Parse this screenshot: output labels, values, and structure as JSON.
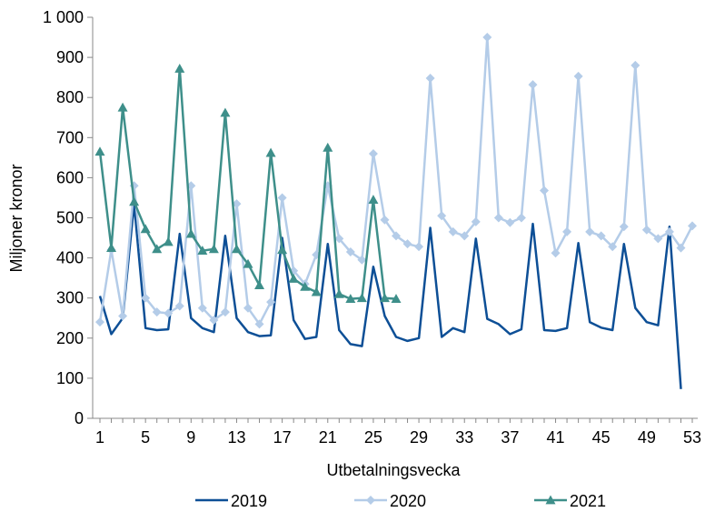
{
  "chart_data": {
    "type": "line",
    "title": "",
    "xlabel": "Utbetalningsvecka",
    "ylabel": "Miljoner kronor",
    "ylim": [
      0,
      1000
    ],
    "xlim": [
      1,
      53
    ],
    "y_ticks": [
      "0",
      "100",
      "200",
      "300",
      "400",
      "500",
      "600",
      "700",
      "800",
      "900",
      "1 000"
    ],
    "x_ticks": [
      "1",
      "5",
      "9",
      "13",
      "17",
      "21",
      "25",
      "29",
      "33",
      "37",
      "41",
      "45",
      "49",
      "53"
    ],
    "grid": false,
    "legend_position": "bottom",
    "series": [
      {
        "name": "2019",
        "color": "#0d4f96",
        "marker": "none",
        "x": [
          1,
          2,
          3,
          4,
          5,
          6,
          7,
          8,
          9,
          10,
          11,
          12,
          13,
          14,
          15,
          16,
          17,
          18,
          19,
          20,
          21,
          22,
          23,
          24,
          25,
          26,
          27,
          28,
          29,
          30,
          31,
          32,
          33,
          34,
          35,
          36,
          37,
          38,
          39,
          40,
          41,
          42,
          43,
          44,
          45,
          46,
          47,
          48,
          49,
          50,
          51,
          52
        ],
        "values": [
          305,
          210,
          250,
          535,
          225,
          220,
          222,
          460,
          250,
          225,
          215,
          455,
          250,
          215,
          205,
          207,
          450,
          245,
          198,
          203,
          435,
          220,
          185,
          180,
          378,
          255,
          203,
          193,
          200,
          475,
          203,
          225,
          215,
          448,
          248,
          235,
          210,
          222,
          485,
          220,
          218,
          225,
          437,
          240,
          226,
          220,
          435,
          275,
          240,
          232,
          478,
          73
        ]
      },
      {
        "name": "2020",
        "color": "#b4cce8",
        "marker": "diamond",
        "x": [
          1,
          2,
          3,
          4,
          5,
          6,
          7,
          8,
          9,
          10,
          11,
          12,
          13,
          14,
          15,
          16,
          17,
          18,
          19,
          20,
          21,
          22,
          23,
          24,
          25,
          26,
          27,
          28,
          29,
          30,
          31,
          32,
          33,
          34,
          35,
          36,
          37,
          38,
          39,
          40,
          41,
          42,
          43,
          44,
          45,
          46,
          47,
          48,
          49,
          50,
          51,
          52,
          53
        ],
        "values": [
          240,
          420,
          255,
          580,
          300,
          265,
          262,
          280,
          580,
          275,
          245,
          265,
          535,
          275,
          235,
          290,
          550,
          368,
          335,
          408,
          580,
          448,
          415,
          395,
          660,
          495,
          455,
          435,
          428,
          848,
          505,
          465,
          455,
          490,
          950,
          500,
          488,
          500,
          832,
          568,
          412,
          465,
          853,
          465,
          455,
          428,
          478,
          880,
          470,
          448,
          465,
          425,
          480
        ]
      },
      {
        "name": "2021",
        "color": "#3e8f8a",
        "marker": "triangle",
        "x": [
          1,
          2,
          3,
          4,
          5,
          6,
          7,
          8,
          9,
          10,
          11,
          12,
          13,
          14,
          15,
          16,
          17,
          18,
          19,
          20,
          21,
          22,
          23,
          24,
          25,
          26,
          27
        ],
        "values": [
          665,
          425,
          775,
          540,
          472,
          422,
          440,
          872,
          460,
          418,
          422,
          762,
          422,
          385,
          332,
          662,
          420,
          348,
          328,
          315,
          675,
          310,
          298,
          300,
          545,
          300,
          298
        ]
      }
    ]
  }
}
